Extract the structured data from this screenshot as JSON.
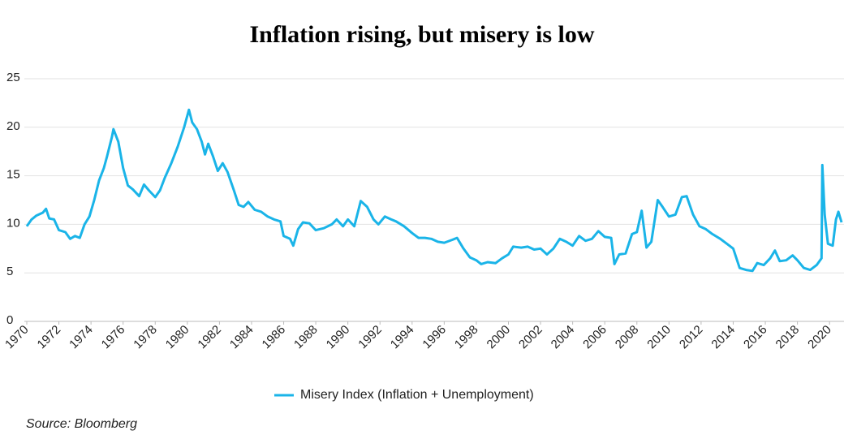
{
  "chart_data": {
    "type": "line",
    "title": "Inflation rising, but misery is low",
    "source": "Source: Bloomberg",
    "x": [
      1970.0,
      1970.3,
      1970.6,
      1971.0,
      1971.2,
      1971.4,
      1971.7,
      1972.0,
      1972.4,
      1972.7,
      1973.0,
      1973.3,
      1973.6,
      1973.9,
      1974.2,
      1974.5,
      1974.8,
      1975.0,
      1975.3,
      1975.4,
      1975.7,
      1976.0,
      1976.3,
      1976.6,
      1977.0,
      1977.3,
      1977.6,
      1978.0,
      1978.3,
      1978.6,
      1979.0,
      1979.4,
      1979.8,
      1980.1,
      1980.3,
      1980.6,
      1980.9,
      1981.1,
      1981.3,
      1981.6,
      1981.9,
      1982.2,
      1982.5,
      1982.9,
      1983.2,
      1983.5,
      1983.8,
      1984.2,
      1984.6,
      1985.0,
      1985.4,
      1985.8,
      1986.0,
      1986.4,
      1986.6,
      1986.9,
      1987.2,
      1987.6,
      1988.0,
      1988.5,
      1989.0,
      1989.3,
      1989.7,
      1990.0,
      1990.4,
      1990.8,
      1991.2,
      1991.6,
      1991.9,
      1992.3,
      1992.7,
      1993.0,
      1993.5,
      1994.0,
      1994.4,
      1994.8,
      1995.2,
      1995.6,
      1996.0,
      1996.5,
      1996.8,
      1997.2,
      1997.6,
      1998.0,
      1998.3,
      1998.7,
      1999.2,
      1999.6,
      2000.0,
      2000.3,
      2000.8,
      2001.2,
      2001.6,
      2002.0,
      2002.4,
      2002.8,
      2003.2,
      2003.6,
      2004.0,
      2004.4,
      2004.8,
      2005.2,
      2005.6,
      2006.0,
      2006.4,
      2006.6,
      2006.9,
      2007.3,
      2007.7,
      2008.0,
      2008.3,
      2008.6,
      2008.9,
      2009.3,
      2009.6,
      2010.0,
      2010.4,
      2010.8,
      2011.1,
      2011.5,
      2011.9,
      2012.3,
      2012.7,
      2013.2,
      2013.6,
      2014.0,
      2014.4,
      2014.8,
      2015.2,
      2015.5,
      2015.9,
      2016.3,
      2016.6,
      2016.9,
      2017.3,
      2017.7,
      2018.0,
      2018.4,
      2018.8,
      2019.2,
      2019.5,
      2019.55,
      2019.7,
      2019.9,
      2020.2,
      2020.4,
      2020.55,
      2020.75
    ],
    "series": [
      {
        "name": "Misery Index (Inflation + Unemployment)",
        "color": "#1ab4e8",
        "values": [
          9.8,
          10.5,
          10.9,
          11.2,
          11.6,
          10.6,
          10.5,
          9.4,
          9.2,
          8.5,
          8.8,
          8.6,
          10.0,
          10.8,
          12.5,
          14.5,
          15.8,
          17.0,
          19.0,
          19.8,
          18.5,
          15.8,
          14.0,
          13.6,
          12.9,
          14.1,
          13.5,
          12.8,
          13.5,
          14.8,
          16.3,
          18.0,
          20.0,
          21.8,
          20.5,
          19.8,
          18.5,
          17.2,
          18.3,
          17.0,
          15.5,
          16.3,
          15.4,
          13.5,
          12.0,
          11.8,
          12.3,
          11.5,
          11.3,
          10.8,
          10.5,
          10.3,
          8.8,
          8.5,
          7.8,
          9.5,
          10.2,
          10.1,
          9.4,
          9.6,
          10.0,
          10.5,
          9.8,
          10.5,
          9.8,
          12.4,
          11.8,
          10.5,
          10.0,
          10.8,
          10.5,
          10.3,
          9.8,
          9.1,
          8.6,
          8.6,
          8.5,
          8.2,
          8.1,
          8.4,
          8.6,
          7.5,
          6.6,
          6.3,
          5.9,
          6.1,
          6.0,
          6.5,
          6.9,
          7.7,
          7.6,
          7.7,
          7.4,
          7.5,
          6.9,
          7.5,
          8.5,
          8.2,
          7.8,
          8.8,
          8.3,
          8.5,
          9.3,
          8.7,
          8.6,
          5.9,
          6.9,
          7.0,
          9.0,
          9.2,
          11.4,
          7.6,
          8.2,
          12.5,
          11.8,
          10.8,
          11.0,
          12.8,
          12.9,
          11.0,
          9.8,
          9.5,
          9.0,
          8.5,
          8.0,
          7.5,
          5.5,
          5.3,
          5.2,
          6.0,
          5.8,
          6.5,
          7.3,
          6.2,
          6.3,
          6.8,
          6.3,
          5.5,
          5.3,
          5.8,
          6.5,
          16.1,
          11.0,
          8.0,
          7.8,
          10.5,
          11.3,
          10.2
        ]
      }
    ],
    "xlim": [
      1970,
      2020.8
    ],
    "xticks": [
      1970,
      1972,
      1974,
      1976,
      1978,
      1980,
      1982,
      1984,
      1986,
      1988,
      1990,
      1992,
      1994,
      1996,
      1998,
      2000,
      2002,
      2004,
      2006,
      2008,
      2010,
      2012,
      2014,
      2016,
      2018,
      2020
    ],
    "ylim": [
      0,
      25
    ],
    "yticks": [
      0,
      5,
      10,
      15,
      20,
      25
    ],
    "grid": true
  }
}
